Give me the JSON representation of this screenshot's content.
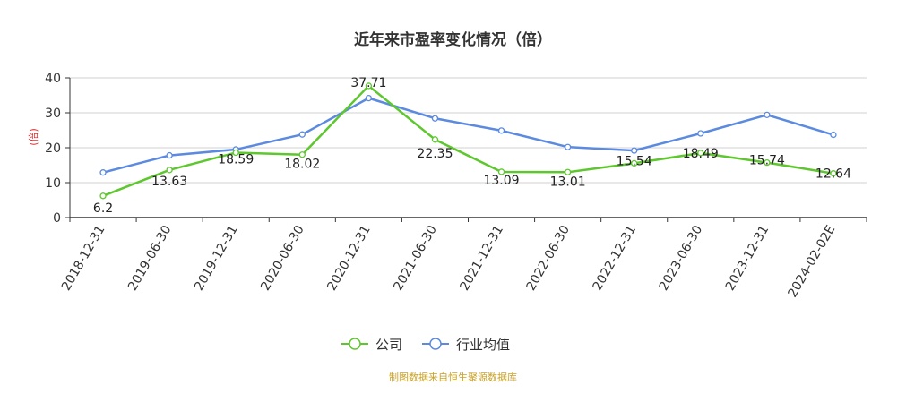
{
  "chart_data": {
    "type": "line",
    "title": "近年来市盈率变化情况（倍）",
    "ylabel": "(倍)",
    "xlabel": "",
    "ylim": [
      0,
      40
    ],
    "yticks": [
      0,
      10,
      20,
      30,
      40
    ],
    "grid": true,
    "legend_position": "bottom",
    "categories": [
      "2018-12-31",
      "2019-06-30",
      "2019-12-31",
      "2020-06-30",
      "2020-12-31",
      "2021-06-30",
      "2021-12-31",
      "2022-06-30",
      "2022-12-31",
      "2023-06-30",
      "2023-12-31",
      "2024-02-02E"
    ],
    "series": [
      {
        "name": "公司",
        "color": "#5ec72e",
        "values": [
          6.2,
          13.63,
          18.59,
          18.02,
          37.71,
          22.35,
          13.09,
          13.01,
          15.54,
          18.49,
          15.74,
          12.64
        ],
        "labels": [
          "6.2",
          "13.63",
          "18.59",
          "18.02",
          "37.71",
          "22.35",
          "13.09",
          "13.01",
          "15.54",
          "18.49",
          "15.74",
          "12.64"
        ]
      },
      {
        "name": "行业均值",
        "color": "#5b8ae0",
        "values": [
          12.9,
          17.8,
          19.5,
          23.8,
          34.2,
          28.4,
          24.9,
          20.2,
          19.2,
          24.1,
          29.4,
          23.7
        ]
      }
    ],
    "source": "制图数据来自恒生聚源数据库"
  }
}
